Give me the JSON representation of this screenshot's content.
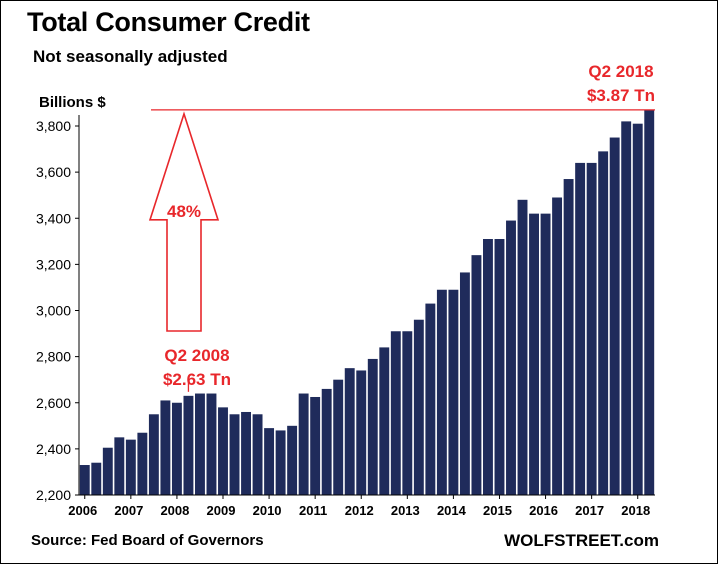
{
  "title": "Total Consumer Credit",
  "subtitle": "Not seasonally adjusted",
  "source": "Source: Fed Board of Governors",
  "brand": "WOLFSTREET.com",
  "colors": {
    "bar": "#1f2b5b",
    "annotation": "#e8272b",
    "axis": "#000000"
  },
  "chart_data": {
    "type": "bar",
    "ylabel": "Billions $",
    "ylim": [
      2200,
      3900
    ],
    "yticks": [
      2200,
      2400,
      2600,
      2800,
      3000,
      3200,
      3400,
      3600,
      3800
    ],
    "yticklabels": [
      "2,200",
      "2,400",
      "2,600",
      "2,800",
      "3,000",
      "3,200",
      "3,400",
      "3,600",
      "3,800"
    ],
    "xticks": [
      "2006",
      "2007",
      "2008",
      "2009",
      "2010",
      "2011",
      "2012",
      "2013",
      "2014",
      "2015",
      "2016",
      "2017",
      "2018"
    ],
    "grid": false,
    "legend": "none",
    "categories": [
      "2006 Q1",
      "2006 Q2",
      "2006 Q3",
      "2006 Q4",
      "2007 Q1",
      "2007 Q2",
      "2007 Q3",
      "2007 Q4",
      "2008 Q1",
      "2008 Q2",
      "2008 Q3",
      "2008 Q4",
      "2009 Q1",
      "2009 Q2",
      "2009 Q3",
      "2009 Q4",
      "2010 Q1",
      "2010 Q2",
      "2010 Q3",
      "2010 Q4",
      "2011 Q1",
      "2011 Q2",
      "2011 Q3",
      "2011 Q4",
      "2012 Q1",
      "2012 Q2",
      "2012 Q3",
      "2012 Q4",
      "2013 Q1",
      "2013 Q2",
      "2013 Q3",
      "2013 Q4",
      "2014 Q1",
      "2014 Q2",
      "2014 Q3",
      "2014 Q4",
      "2015 Q1",
      "2015 Q2",
      "2015 Q3",
      "2015 Q4",
      "2016 Q1",
      "2016 Q2",
      "2016 Q3",
      "2016 Q4",
      "2017 Q1",
      "2017 Q2",
      "2017 Q3",
      "2017 Q4",
      "2018 Q1",
      "2018 Q2"
    ],
    "values": [
      2330,
      2340,
      2405,
      2450,
      2440,
      2470,
      2550,
      2610,
      2600,
      2630,
      2640,
      2640,
      2580,
      2550,
      2560,
      2550,
      2490,
      2480,
      2500,
      2640,
      2625,
      2660,
      2700,
      2750,
      2740,
      2790,
      2840,
      2910,
      2910,
      2960,
      3030,
      3090,
      3090,
      3165,
      3240,
      3310,
      3310,
      3390,
      3480,
      3420,
      3420,
      3490,
      3570,
      3640,
      3640,
      3690,
      3750,
      3820,
      3810,
      3870
    ],
    "annotations": {
      "peak_2008": {
        "label_line1": "Q2 2008",
        "label_line2": "$2.63 Tn",
        "value": 2630
      },
      "peak_2018": {
        "label_line1": "Q2 2018",
        "label_line2": "$3.87 Tn",
        "value": 3870
      },
      "growth_label": "48%"
    }
  }
}
